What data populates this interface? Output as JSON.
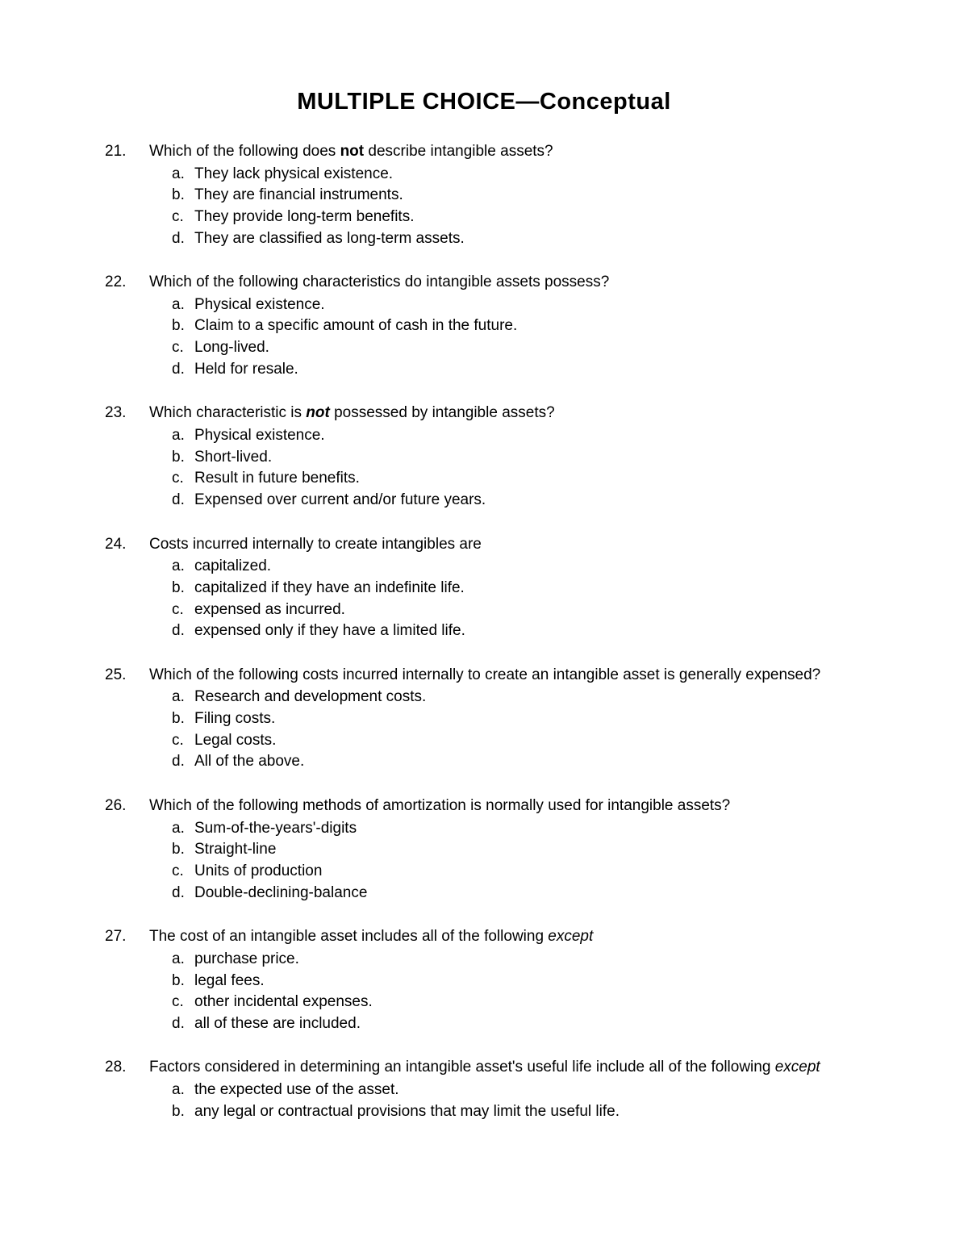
{
  "title_prefix": "MULTIPLE CHOICE—",
  "title_suffix": "Conceptual",
  "questions": [
    {
      "number": "21.",
      "text_parts": [
        {
          "text": "Which of the following does ",
          "style": "normal"
        },
        {
          "text": "not",
          "style": "bold"
        },
        {
          "text": " describe intangible assets?",
          "style": "normal"
        }
      ],
      "justify": false,
      "options": [
        {
          "letter": "a.",
          "text": "They lack physical existence."
        },
        {
          "letter": "b.",
          "text": "They are financial instruments."
        },
        {
          "letter": "c.",
          "text": "They provide long-term benefits."
        },
        {
          "letter": "d.",
          "text": "They are classified as long-term assets."
        }
      ]
    },
    {
      "number": "22.",
      "text_parts": [
        {
          "text": "Which of the following characteristics do intangible assets possess?",
          "style": "normal"
        }
      ],
      "justify": false,
      "options": [
        {
          "letter": "a.",
          "text": "Physical existence."
        },
        {
          "letter": "b.",
          "text": "Claim to a specific amount of cash in the future."
        },
        {
          "letter": "c.",
          "text": "Long-lived."
        },
        {
          "letter": "d.",
          "text": "Held for resale."
        }
      ]
    },
    {
      "number": "23.",
      "text_parts": [
        {
          "text": "Which characteristic is ",
          "style": "normal"
        },
        {
          "text": "not",
          "style": "bold-italic"
        },
        {
          "text": " possessed by intangible assets?",
          "style": "normal"
        }
      ],
      "justify": false,
      "options": [
        {
          "letter": "a.",
          "text": "Physical existence."
        },
        {
          "letter": "b.",
          "text": "Short-lived."
        },
        {
          "letter": "c.",
          "text": "Result in future benefits."
        },
        {
          "letter": "d.",
          "text": "Expensed over current and/or future years."
        }
      ]
    },
    {
      "number": "24.",
      "text_parts": [
        {
          "text": "Costs incurred internally to create intangibles are",
          "style": "normal"
        }
      ],
      "justify": false,
      "options": [
        {
          "letter": "a.",
          "text": "capitalized."
        },
        {
          "letter": "b.",
          "text": "capitalized if they have an indefinite life."
        },
        {
          "letter": "c.",
          "text": "expensed as incurred."
        },
        {
          "letter": "d.",
          "text": "expensed only if they have a limited life."
        }
      ]
    },
    {
      "number": "25.",
      "text_parts": [
        {
          "text": "Which of the following costs incurred internally to create an intangible asset is generally expensed?",
          "style": "normal"
        }
      ],
      "justify": true,
      "options": [
        {
          "letter": "a.",
          "text": "Research and development costs."
        },
        {
          "letter": "b.",
          "text": "Filing costs."
        },
        {
          "letter": "c.",
          "text": "Legal costs."
        },
        {
          "letter": "d.",
          "text": "All of the above."
        }
      ]
    },
    {
      "number": "26.",
      "text_parts": [
        {
          "text": "Which of the following methods of amortization is normally used for intangible assets?",
          "style": "normal"
        }
      ],
      "justify": false,
      "options": [
        {
          "letter": "a.",
          "text": "Sum-of-the-years'-digits"
        },
        {
          "letter": "b.",
          "text": "Straight-line"
        },
        {
          "letter": "c.",
          "text": "Units of production"
        },
        {
          "letter": "d.",
          "text": "Double-declining-balance"
        }
      ]
    },
    {
      "number": "27.",
      "text_parts": [
        {
          "text": "The cost of an intangible asset includes all of the following ",
          "style": "normal"
        },
        {
          "text": "except",
          "style": "italic"
        }
      ],
      "justify": false,
      "options": [
        {
          "letter": "a.",
          "text": "purchase price."
        },
        {
          "letter": "b.",
          "text": "legal fees."
        },
        {
          "letter": "c.",
          "text": "other incidental expenses."
        },
        {
          "letter": "d.",
          "text": "all of these are included."
        }
      ]
    },
    {
      "number": "28.",
      "text_parts": [
        {
          "text": "Factors considered in determining an intangible asset's useful life include all of the following ",
          "style": "normal"
        },
        {
          "text": "except",
          "style": "italic"
        }
      ],
      "justify": true,
      "options": [
        {
          "letter": "a.",
          "text": "the expected use of the asset."
        },
        {
          "letter": "b.",
          "text": "any legal or contractual provisions that may limit the useful life."
        }
      ]
    }
  ]
}
